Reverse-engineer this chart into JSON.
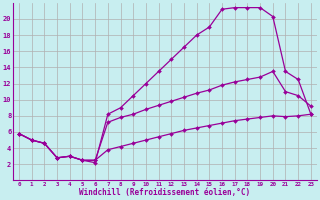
{
  "background_color": "#c8eef0",
  "grid_color": "#b0b0b0",
  "line_color": "#990099",
  "xlim": [
    -0.5,
    23.5
  ],
  "ylim": [
    0,
    22
  ],
  "xtick_labels": [
    "0",
    "1",
    "2",
    "3",
    "4",
    "5",
    "6",
    "7",
    "8",
    "9",
    "10",
    "11",
    "12",
    "13",
    "14",
    "15",
    "16",
    "17",
    "18",
    "19",
    "20",
    "21",
    "22",
    "23"
  ],
  "xtick_positions": [
    0,
    1,
    2,
    3,
    4,
    5,
    6,
    7,
    8,
    9,
    10,
    11,
    12,
    13,
    14,
    15,
    16,
    17,
    18,
    19,
    20,
    21,
    22,
    23
  ],
  "yticks": [
    2,
    4,
    6,
    8,
    10,
    12,
    14,
    16,
    18,
    20
  ],
  "xlabel": "Windchill (Refroidissement éolien,°C)",
  "series": [
    {
      "x": [
        0,
        1,
        2,
        3,
        4,
        5,
        6,
        7,
        8,
        9,
        10,
        11,
        12,
        13,
        14,
        15,
        16,
        17,
        18,
        19,
        20,
        21,
        22,
        23
      ],
      "y": [
        5.8,
        5.0,
        4.6,
        2.8,
        3.0,
        2.5,
        2.2,
        8.2,
        9.0,
        10.5,
        12.0,
        13.5,
        15.0,
        16.5,
        18.0,
        19.0,
        21.2,
        21.4,
        21.4,
        21.4,
        20.3,
        13.5,
        12.5,
        8.2
      ]
    },
    {
      "x": [
        0,
        1,
        2,
        3,
        4,
        5,
        6,
        7,
        8,
        9,
        10,
        11,
        12,
        13,
        14,
        15,
        16,
        17,
        18,
        19,
        20,
        21,
        22,
        23
      ],
      "y": [
        5.8,
        5.0,
        4.6,
        2.8,
        3.0,
        2.5,
        2.5,
        7.2,
        7.8,
        8.2,
        8.8,
        9.3,
        9.8,
        10.3,
        10.8,
        11.2,
        11.8,
        12.2,
        12.5,
        12.8,
        13.5,
        11.0,
        10.5,
        9.2
      ]
    },
    {
      "x": [
        0,
        1,
        2,
        3,
        4,
        5,
        6,
        7,
        8,
        9,
        10,
        11,
        12,
        13,
        14,
        15,
        16,
        17,
        18,
        19,
        20,
        21,
        22,
        23
      ],
      "y": [
        5.8,
        5.0,
        4.6,
        2.8,
        3.0,
        2.5,
        2.5,
        3.8,
        4.2,
        4.6,
        5.0,
        5.4,
        5.8,
        6.2,
        6.5,
        6.8,
        7.1,
        7.4,
        7.6,
        7.8,
        8.0,
        7.9,
        8.0,
        8.2
      ]
    }
  ]
}
